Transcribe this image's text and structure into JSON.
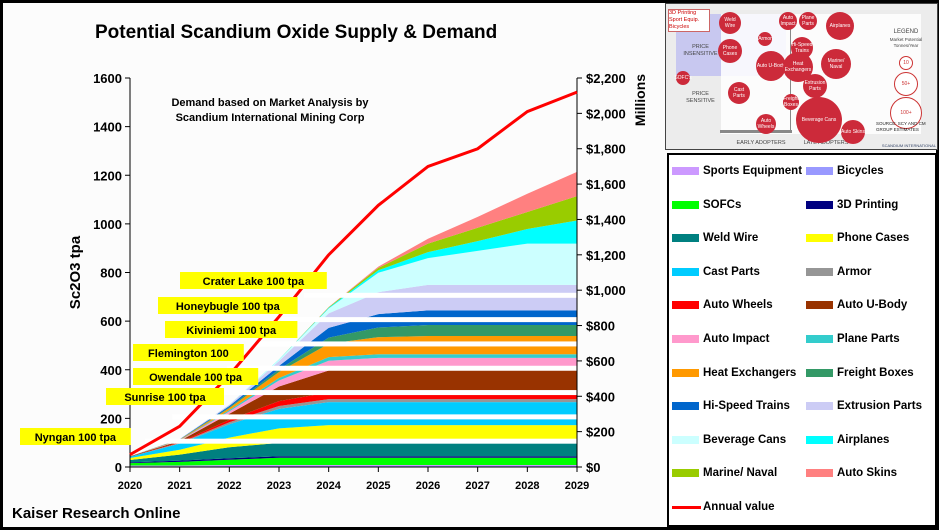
{
  "chart_data": {
    "type": "area",
    "title": "Potential Scandium Oxide Supply & Demand",
    "ylabel": "Sc2O3 tpa",
    "y2label": "Millions",
    "xlabel": "",
    "x": [
      2020,
      2021,
      2022,
      2023,
      2024,
      2025,
      2026,
      2027,
      2028,
      2029
    ],
    "ylim": [
      0,
      1600
    ],
    "y2lim": [
      0,
      2200
    ],
    "yticks": [
      "0",
      "200",
      "400",
      "600",
      "800",
      "1000",
      "1200",
      "1400",
      "1600"
    ],
    "y2ticks": [
      "$0",
      "$200",
      "$400",
      "$600",
      "$800",
      "$1,000",
      "$1,200",
      "$1,400",
      "$1,600",
      "$1,800",
      "$2,000",
      "$2,200"
    ],
    "annotation": "Demand based on Market Analysis by\nScandium International Mining Corp",
    "stacked": true,
    "series": [
      {
        "name": "Bicycles",
        "color": "#9999ff",
        "values": [
          3,
          3,
          4,
          4,
          4,
          4,
          4,
          4,
          4,
          4
        ]
      },
      {
        "name": "Sports Equipment",
        "color": "#cc99ff",
        "values": [
          3,
          3,
          4,
          4,
          4,
          4,
          4,
          4,
          4,
          4
        ]
      },
      {
        "name": "SOFCs",
        "color": "#00ff00",
        "values": [
          10,
          15,
          22,
          30,
          30,
          30,
          30,
          30,
          30,
          30
        ]
      },
      {
        "name": "3D Printing",
        "color": "#000080",
        "values": [
          3,
          5,
          6,
          6,
          6,
          6,
          6,
          6,
          6,
          6
        ]
      },
      {
        "name": "Weld Wire",
        "color": "#008080",
        "values": [
          10,
          25,
          45,
          55,
          58,
          58,
          58,
          58,
          58,
          58
        ]
      },
      {
        "name": "Phone Cases",
        "color": "#ffff00",
        "values": [
          8,
          20,
          40,
          60,
          70,
          70,
          70,
          70,
          70,
          70
        ]
      },
      {
        "name": "Cast Parts",
        "color": "#00ccff",
        "values": [
          5,
          25,
          55,
          80,
          95,
          95,
          95,
          95,
          95,
          95
        ]
      },
      {
        "name": "Armor",
        "color": "#969696",
        "values": [
          0,
          3,
          8,
          12,
          12,
          12,
          12,
          12,
          12,
          12
        ]
      },
      {
        "name": "Auto Wheels",
        "color": "#ff0000",
        "values": [
          0,
          3,
          10,
          20,
          28,
          30,
          30,
          30,
          30,
          30
        ]
      },
      {
        "name": "Auto U-Body",
        "color": "#993300",
        "values": [
          2,
          5,
          25,
          60,
          90,
          95,
          95,
          95,
          95,
          95
        ]
      },
      {
        "name": "Auto Impact",
        "color": "#ff99cc",
        "values": [
          0,
          2,
          10,
          25,
          40,
          45,
          45,
          45,
          45,
          45
        ]
      },
      {
        "name": "Plane Parts",
        "color": "#33cccc",
        "values": [
          0,
          1,
          5,
          10,
          15,
          15,
          15,
          15,
          15,
          15
        ]
      },
      {
        "name": "Heat Exchangers",
        "color": "#ff9900",
        "values": [
          0,
          2,
          8,
          25,
          55,
          70,
          75,
          75,
          75,
          75
        ]
      },
      {
        "name": "Freight Boxes",
        "color": "#339966",
        "values": [
          0,
          1,
          4,
          10,
          25,
          40,
          45,
          45,
          45,
          45
        ]
      },
      {
        "name": "Hi-Speed Trains",
        "color": "#0066cc",
        "values": [
          0,
          1,
          5,
          15,
          40,
          55,
          60,
          60,
          60,
          60
        ]
      },
      {
        "name": "Extrusion Parts",
        "color": "#ccccf5",
        "values": [
          0,
          1,
          5,
          20,
          60,
          90,
          105,
          105,
          105,
          105
        ]
      },
      {
        "name": "Beverage Cans",
        "color": "#ccffff",
        "values": [
          0,
          0,
          1,
          5,
          20,
          80,
          110,
          140,
          170,
          170
        ]
      },
      {
        "name": "Airplanes",
        "color": "#00ffff",
        "values": [
          0,
          0,
          0,
          1,
          3,
          10,
          25,
          40,
          60,
          95
        ]
      },
      {
        "name": "Marine/ Naval",
        "color": "#99cc00",
        "values": [
          0,
          0,
          0,
          0,
          2,
          10,
          35,
          55,
          70,
          100
        ]
      },
      {
        "name": "Auto Skins",
        "color": "#ff8080",
        "values": [
          0,
          0,
          0,
          0,
          1,
          5,
          20,
          45,
          75,
          100
        ]
      }
    ],
    "line_series": {
      "name": "Annual value",
      "axis": "right",
      "color": "#ff0000",
      "values": [
        70,
        230,
        520,
        850,
        1200,
        1480,
        1700,
        1800,
        2010,
        2120
      ]
    },
    "supply_projects": [
      {
        "label": "Nyngan 100 tpa",
        "tpa": 100
      },
      {
        "label": "Sunrise 100 tpa",
        "tpa": 100
      },
      {
        "label": "Owendale 100 tpa",
        "tpa": 100
      },
      {
        "label": "Flemington 100",
        "tpa": 100
      },
      {
        "label": "Kiviniemi 100 tpa",
        "tpa": 100
      },
      {
        "label": "Honeybugle 100 tpa",
        "tpa": 100
      },
      {
        "label": "Crater Lake 100 tpa",
        "tpa": 100
      }
    ],
    "legend_position": "right"
  },
  "legend": {
    "items": [
      {
        "label": "Sports Equipment",
        "color": "#cc99ff"
      },
      {
        "label": "Bicycles",
        "color": "#9999ff"
      },
      {
        "label": "SOFCs",
        "color": "#00ff00"
      },
      {
        "label": "3D Printing",
        "color": "#000080"
      },
      {
        "label": "Weld Wire",
        "color": "#008080"
      },
      {
        "label": "Phone Cases",
        "color": "#ffff00"
      },
      {
        "label": "Cast Parts",
        "color": "#00ccff"
      },
      {
        "label": "Armor",
        "color": "#969696"
      },
      {
        "label": "Auto Wheels",
        "color": "#ff0000"
      },
      {
        "label": "Auto U-Body",
        "color": "#993300"
      },
      {
        "label": "Auto Impact",
        "color": "#ff99cc"
      },
      {
        "label": "Plane Parts",
        "color": "#33cccc"
      },
      {
        "label": "Heat Exchangers",
        "color": "#ff9900"
      },
      {
        "label": "Freight Boxes",
        "color": "#339966"
      },
      {
        "label": "Hi-Speed Trains",
        "color": "#0066cc"
      },
      {
        "label": "Extrusion Parts",
        "color": "#ccccf5"
      },
      {
        "label": "Beverage Cans",
        "color": "#ccffff"
      },
      {
        "label": "Airplanes",
        "color": "#00ffff"
      },
      {
        "label": "Marine/ Naval",
        "color": "#99cc00"
      },
      {
        "label": "Auto Skins",
        "color": "#ff8080"
      }
    ],
    "line_label": "Annual value"
  },
  "inset": {
    "callout": "3D Printing\nSport Equip.\nBicycles",
    "quadrant_labels": {
      "price_insensitive": "PRICE\nINSENSITIVE",
      "price_sensitive": "PRICE\nSENSITIVE",
      "early": "EARLY ADOPTERS",
      "late": "LATE ADOPTERS"
    },
    "legend_title": "LEGEND",
    "legend_sub": "Market Potential\nTonnes/Year",
    "legend_sizes": [
      "10",
      "50+",
      "100+"
    ],
    "source": "SOURCE: SCY AND CM\nGROUP ESTIMATES",
    "brand": "SCANDIUM INTERNATIONAL",
    "bubbles": [
      "Weld Wire",
      "Auto Impact",
      "Plane Parts",
      "Airplanes",
      "Armor",
      "Phone Cases",
      "Hi-Speed Trains",
      "Auto U-Body",
      "Heat Exchangers",
      "Marine/ Naval",
      "SOFC's",
      "Extrusion Parts",
      "Cast Parts",
      "Freight Boxes",
      "Beverage Cans",
      "Auto Wheels",
      "Auto Skins"
    ]
  },
  "footer": "Kaiser Research Online"
}
